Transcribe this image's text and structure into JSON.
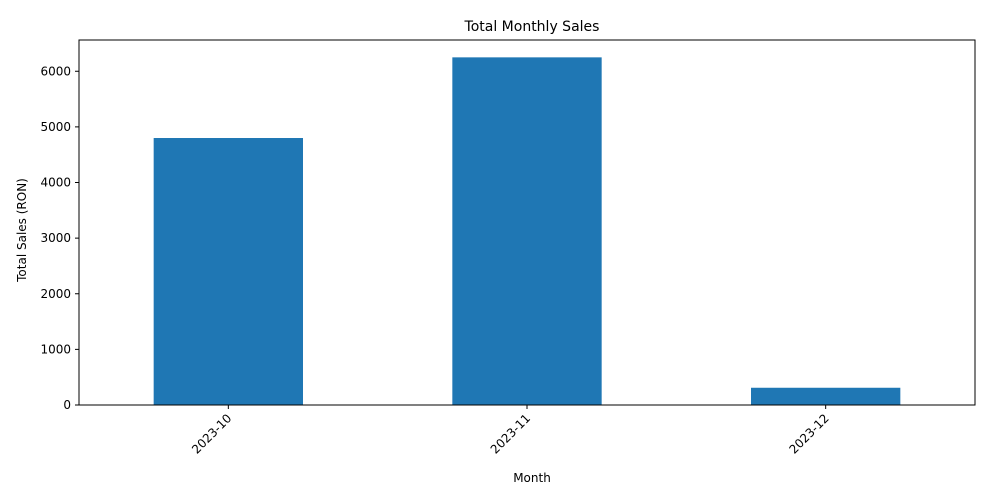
{
  "chart_data": {
    "type": "bar",
    "title": "Total Monthly Sales",
    "xlabel": "Month",
    "ylabel": "Total Sales (RON)",
    "categories": [
      "2023-10",
      "2023-11",
      "2023-12"
    ],
    "values": [
      4800,
      6250,
      310
    ],
    "ylim": [
      0,
      6562
    ],
    "yticks": [
      0,
      1000,
      2000,
      3000,
      4000,
      5000,
      6000
    ],
    "grid": false,
    "legend": "none",
    "bar_color": "#1f77b4"
  }
}
